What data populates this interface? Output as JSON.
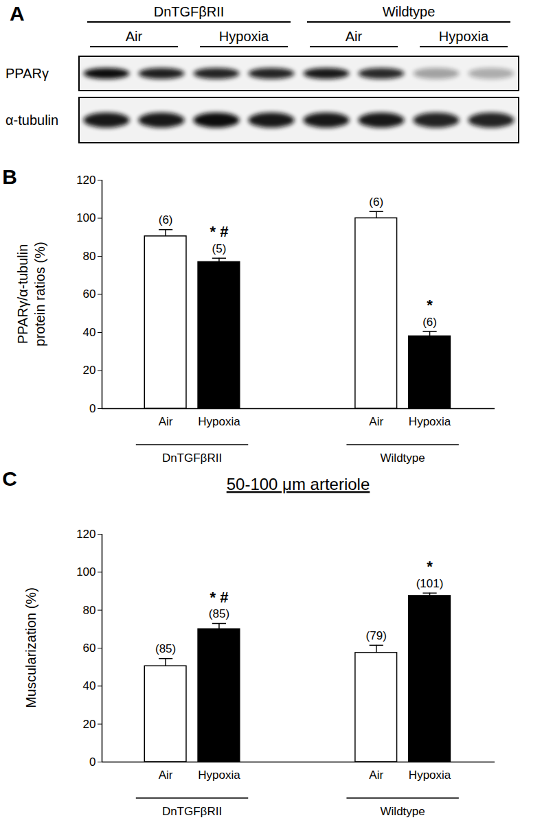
{
  "blot": {
    "panel_label": "A",
    "groups": [
      {
        "label": "DnTGFβRII",
        "conditions": [
          "Air",
          "Hypoxia"
        ]
      },
      {
        "label": "Wildtype",
        "conditions": [
          "Air",
          "Hypoxia"
        ]
      }
    ],
    "rows": [
      "PPARγ",
      "α-tubulin"
    ]
  },
  "chart_data": [
    {
      "type": "bar",
      "panel_label": "B",
      "y_label": [
        "PPARγ/α-tubulin",
        "protein ratios (%)"
      ],
      "categories": [
        "Air",
        "Hypoxia",
        "Air",
        "Hypoxia"
      ],
      "groups": [
        "DnTGFβRII",
        "DnTGFβRII",
        "Wildtype",
        "Wildtype"
      ],
      "values": [
        90.5,
        77,
        100,
        38
      ],
      "errors": [
        3.5,
        2,
        3.5,
        2.5
      ],
      "n_labels": [
        "(6)",
        "(5)",
        "(6)",
        "(6)"
      ],
      "significance": [
        null,
        "* #",
        null,
        "*"
      ],
      "colors": [
        "#ffffff",
        "#000000",
        "#ffffff",
        "#000000"
      ],
      "ylim": [
        0,
        120
      ],
      "yticks": [
        0,
        20,
        40,
        60,
        80,
        100,
        120
      ]
    },
    {
      "type": "bar",
      "panel_label": "C",
      "title": "50-100 μm arteriole",
      "y_label": "Muscularization (%)",
      "categories": [
        "Air",
        "Hypoxia",
        "Air",
        "Hypoxia"
      ],
      "groups": [
        "DnTGFβRII",
        "DnTGFβRII",
        "Wildtype",
        "Wildtype"
      ],
      "values": [
        50.5,
        70,
        57.5,
        87.5
      ],
      "errors": [
        4,
        3,
        4,
        1.5
      ],
      "n_labels": [
        "(85)",
        "(85)",
        "(79)",
        "(101)"
      ],
      "significance": [
        null,
        "* #",
        null,
        "*"
      ],
      "colors": [
        "#ffffff",
        "#000000",
        "#ffffff",
        "#000000"
      ],
      "ylim": [
        0,
        120
      ],
      "yticks": [
        0,
        20,
        40,
        60,
        80,
        100,
        120
      ]
    }
  ]
}
